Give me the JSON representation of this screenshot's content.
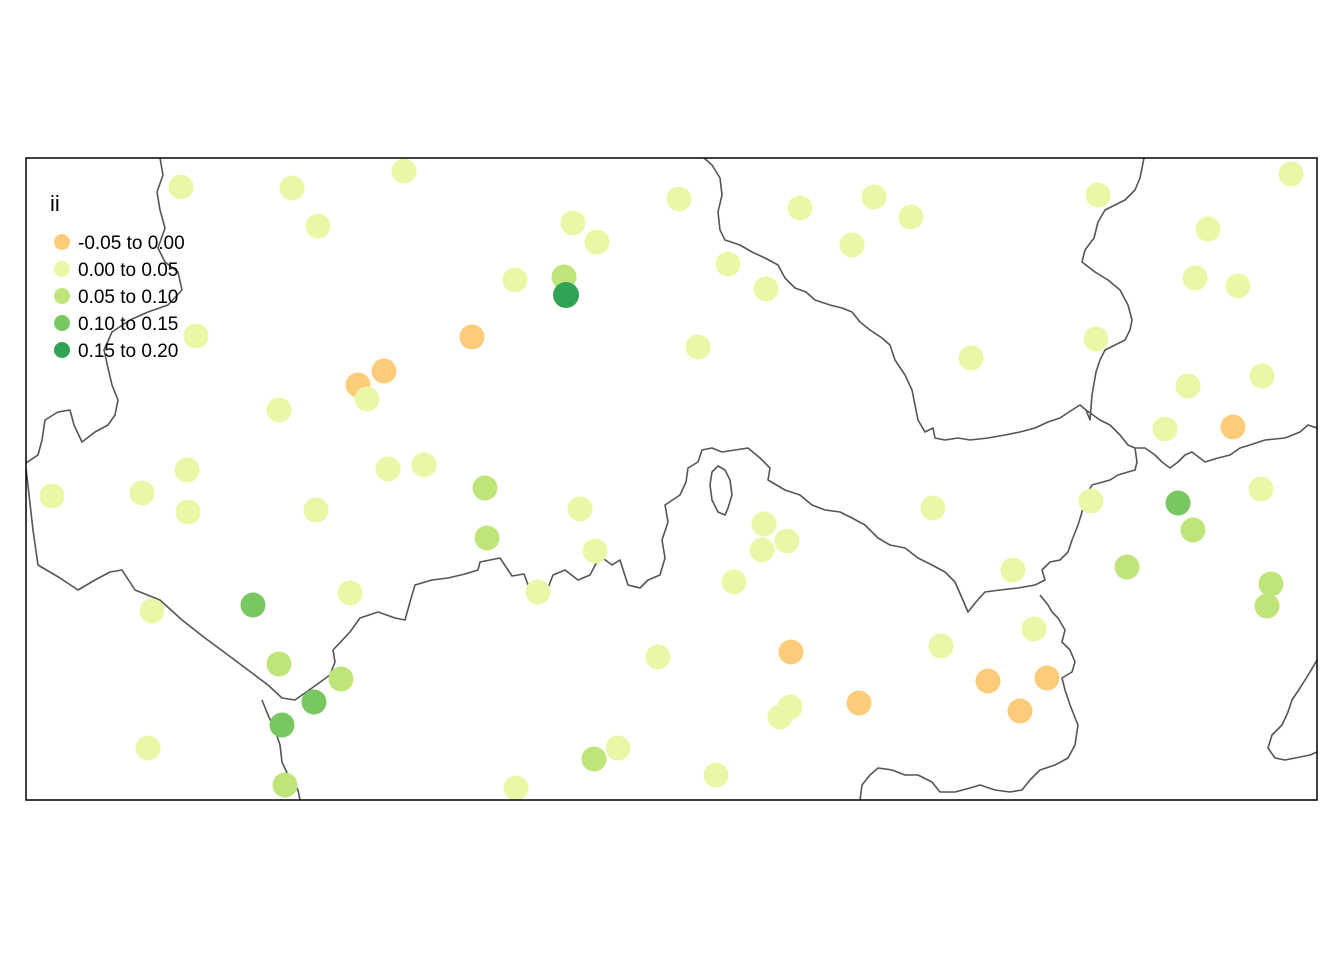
{
  "legend": {
    "title": "ii",
    "classes": [
      {
        "label": "-0.05 to 0.00",
        "color": "#fdcc7b"
      },
      {
        "label": "0.00 to 0.05",
        "color": "#e9f8a6"
      },
      {
        "label": "0.05 to 0.10",
        "color": "#bfe57a"
      },
      {
        "label": "0.10 to 0.15",
        "color": "#79c761"
      },
      {
        "label": "0.15 to 0.20",
        "color": "#31a354"
      }
    ]
  },
  "points": [
    {
      "c": 1
    },
    {
      "c": 1
    },
    {
      "c": 1
    },
    {
      "c": 1
    },
    {
      "c": 1
    },
    {
      "c": 1
    },
    {
      "c": 1
    },
    {
      "c": 2
    },
    {
      "c": 4
    },
    {
      "c": 0
    },
    {
      "c": 0
    },
    {
      "c": 0
    },
    {
      "c": 1
    },
    {
      "c": 1
    },
    {
      "c": 1
    },
    {
      "c": 1
    },
    {
      "c": 1
    },
    {
      "c": 1
    },
    {
      "c": 1
    },
    {
      "c": 1
    },
    {
      "c": 2
    },
    {
      "c": 2
    },
    {
      "c": 1
    },
    {
      "c": 1
    },
    {
      "c": 1
    },
    {
      "c": 1
    },
    {
      "c": 1
    },
    {
      "c": 1
    },
    {
      "c": 1
    },
    {
      "c": 1
    },
    {
      "c": 1
    },
    {
      "c": 1
    },
    {
      "c": 1
    },
    {
      "c": 1
    },
    {
      "c": 1
    },
    {
      "c": 1
    },
    {
      "c": 1
    },
    {
      "c": 1
    },
    {
      "c": 1
    },
    {
      "c": 1
    },
    {
      "c": 1
    },
    {
      "c": 1
    },
    {
      "c": 1
    },
    {
      "c": 0
    },
    {
      "c": 1
    },
    {
      "c": 1
    },
    {
      "c": 1
    },
    {
      "c": 3
    },
    {
      "c": 2
    },
    {
      "c": 1
    },
    {
      "c": 2
    },
    {
      "c": 2
    },
    {
      "c": 1
    },
    {
      "c": 1
    },
    {
      "c": 1
    },
    {
      "c": 1
    },
    {
      "c": 1
    },
    {
      "c": 1
    },
    {
      "c": 2
    },
    {
      "c": 3
    },
    {
      "c": 2
    },
    {
      "c": 3
    },
    {
      "c": 3
    },
    {
      "c": 1
    },
    {
      "c": 1
    },
    {
      "c": 2
    },
    {
      "c": 2
    },
    {
      "c": 2
    },
    {
      "c": 1
    },
    {
      "c": 1
    },
    {
      "c": 1
    },
    {
      "c": 1
    },
    {
      "c": 1
    },
    {
      "c": 0
    },
    {
      "c": 0
    },
    {
      "c": 1
    },
    {
      "c": 1
    },
    {
      "c": 0
    },
    {
      "c": 0
    },
    {
      "c": 0
    },
    {
      "c": 1
    },
    {
      "c": 1
    },
    {
      "c": 1
    }
  ]
}
